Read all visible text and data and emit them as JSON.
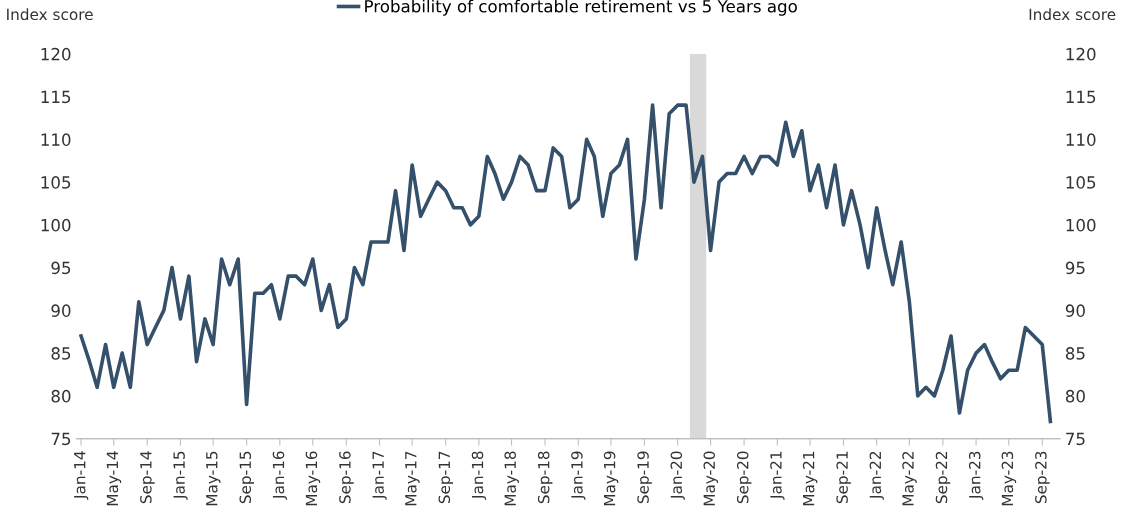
{
  "chart_data": {
    "type": "line",
    "ylabel": "Index score",
    "y2label": "Index score",
    "x": [
      "2014-01",
      "2014-02",
      "2014-03",
      "2014-04",
      "2014-05",
      "2014-06",
      "2014-07",
      "2014-08",
      "2014-09",
      "2014-10",
      "2014-11",
      "2014-12",
      "2015-01",
      "2015-02",
      "2015-03",
      "2015-04",
      "2015-05",
      "2015-06",
      "2015-07",
      "2015-08",
      "2015-09",
      "2015-10",
      "2015-11",
      "2015-12",
      "2016-01",
      "2016-02",
      "2016-03",
      "2016-04",
      "2016-05",
      "2016-06",
      "2016-07",
      "2016-08",
      "2016-09",
      "2016-10",
      "2016-11",
      "2016-12",
      "2017-01",
      "2017-02",
      "2017-03",
      "2017-04",
      "2017-05",
      "2017-06",
      "2017-07",
      "2017-08",
      "2017-09",
      "2017-10",
      "2017-11",
      "2017-12",
      "2018-01",
      "2018-02",
      "2018-03",
      "2018-04",
      "2018-05",
      "2018-06",
      "2018-07",
      "2018-08",
      "2018-09",
      "2018-10",
      "2018-11",
      "2018-12",
      "2019-01",
      "2019-02",
      "2019-03",
      "2019-04",
      "2019-05",
      "2019-06",
      "2019-07",
      "2019-08",
      "2019-09",
      "2019-10",
      "2019-11",
      "2019-12",
      "2020-01",
      "2020-02",
      "2020-03",
      "2020-04",
      "2020-05",
      "2020-06",
      "2020-07",
      "2020-08",
      "2020-09",
      "2020-10",
      "2020-11",
      "2020-12",
      "2021-01",
      "2021-02",
      "2021-03",
      "2021-04",
      "2021-05",
      "2021-06",
      "2021-07",
      "2021-08",
      "2021-09",
      "2021-10",
      "2021-11",
      "2021-12",
      "2022-01",
      "2022-02",
      "2022-03",
      "2022-04",
      "2022-05",
      "2022-06",
      "2022-07",
      "2022-08",
      "2022-09",
      "2022-10",
      "2022-11",
      "2022-12",
      "2023-01",
      "2023-02",
      "2023-03",
      "2023-04",
      "2023-05",
      "2023-06",
      "2023-07",
      "2023-08",
      "2023-09",
      "2023-10"
    ],
    "series": [
      {
        "name": "Probability of comfortable retirement vs 5 Years ago",
        "color": "#34506b",
        "values": [
          87,
          84,
          81,
          86,
          81,
          85,
          81,
          91,
          86,
          88,
          90,
          95,
          89,
          94,
          84,
          89,
          86,
          96,
          93,
          96,
          79,
          92,
          92,
          93,
          89,
          94,
          94,
          93,
          96,
          90,
          93,
          88,
          89,
          95,
          93,
          98,
          98,
          98,
          104,
          97,
          107,
          101,
          103,
          105,
          104,
          102,
          102,
          100,
          101,
          108,
          106,
          103,
          105,
          108,
          107,
          104,
          104,
          109,
          108,
          102,
          103,
          110,
          108,
          101,
          106,
          107,
          110,
          96,
          103,
          114,
          102,
          113,
          114,
          114,
          105,
          108,
          97,
          105,
          106,
          106,
          108,
          106,
          108,
          108,
          107,
          112,
          108,
          111,
          104,
          107,
          102,
          107,
          100,
          104,
          100,
          95,
          102,
          97,
          93,
          98,
          91,
          80,
          81,
          80,
          83,
          87,
          78,
          83,
          85,
          86,
          84,
          82,
          83,
          83,
          88,
          87,
          86,
          77
        ]
      }
    ],
    "xlim": [
      "2013-12-15",
      "2023-11-05"
    ],
    "xticks": [
      {
        "value": "2014-01",
        "label": "Jan-14"
      },
      {
        "value": "2014-05",
        "label": "May-14"
      },
      {
        "value": "2014-09",
        "label": "Sep-14"
      },
      {
        "value": "2015-01",
        "label": "Jan-15"
      },
      {
        "value": "2015-05",
        "label": "May-15"
      },
      {
        "value": "2015-09",
        "label": "Sep-15"
      },
      {
        "value": "2016-01",
        "label": "Jan-16"
      },
      {
        "value": "2016-05",
        "label": "May-16"
      },
      {
        "value": "2016-09",
        "label": "Sep-16"
      },
      {
        "value": "2017-01",
        "label": "Jan-17"
      },
      {
        "value": "2017-05",
        "label": "May-17"
      },
      {
        "value": "2017-09",
        "label": "Sep-17"
      },
      {
        "value": "2018-01",
        "label": "Jan-18"
      },
      {
        "value": "2018-05",
        "label": "May-18"
      },
      {
        "value": "2018-09",
        "label": "Sep-18"
      },
      {
        "value": "2019-01",
        "label": "Jan-19"
      },
      {
        "value": "2019-05",
        "label": "May-19"
      },
      {
        "value": "2019-09",
        "label": "Sep-19"
      },
      {
        "value": "2020-01",
        "label": "Jan-20"
      },
      {
        "value": "2020-05",
        "label": "May-20"
      },
      {
        "value": "2020-09",
        "label": "Sep-20"
      },
      {
        "value": "2021-01",
        "label": "Jan-21"
      },
      {
        "value": "2021-05",
        "label": "May-21"
      },
      {
        "value": "2021-09",
        "label": "Sep-21"
      },
      {
        "value": "2022-01",
        "label": "Jan-22"
      },
      {
        "value": "2022-05",
        "label": "May-22"
      },
      {
        "value": "2022-09",
        "label": "Sep-22"
      },
      {
        "value": "2023-01",
        "label": "Jan-23"
      },
      {
        "value": "2023-05",
        "label": "May-23"
      },
      {
        "value": "2023-09",
        "label": "Sep-23"
      }
    ],
    "ylim": [
      75,
      120
    ],
    "yticks": [
      75,
      80,
      85,
      90,
      95,
      100,
      105,
      110,
      115,
      120
    ],
    "y2lim": [
      75,
      120
    ],
    "y2ticks": [
      75,
      80,
      85,
      90,
      95,
      100,
      105,
      110,
      115,
      120
    ],
    "bands": [
      {
        "axis": "x",
        "from": "2020-02-15",
        "to": "2020-04-15",
        "color": "#d9d9d9"
      }
    ],
    "grid": false,
    "legend": "top",
    "marker": "none",
    "line_style": "solid"
  }
}
